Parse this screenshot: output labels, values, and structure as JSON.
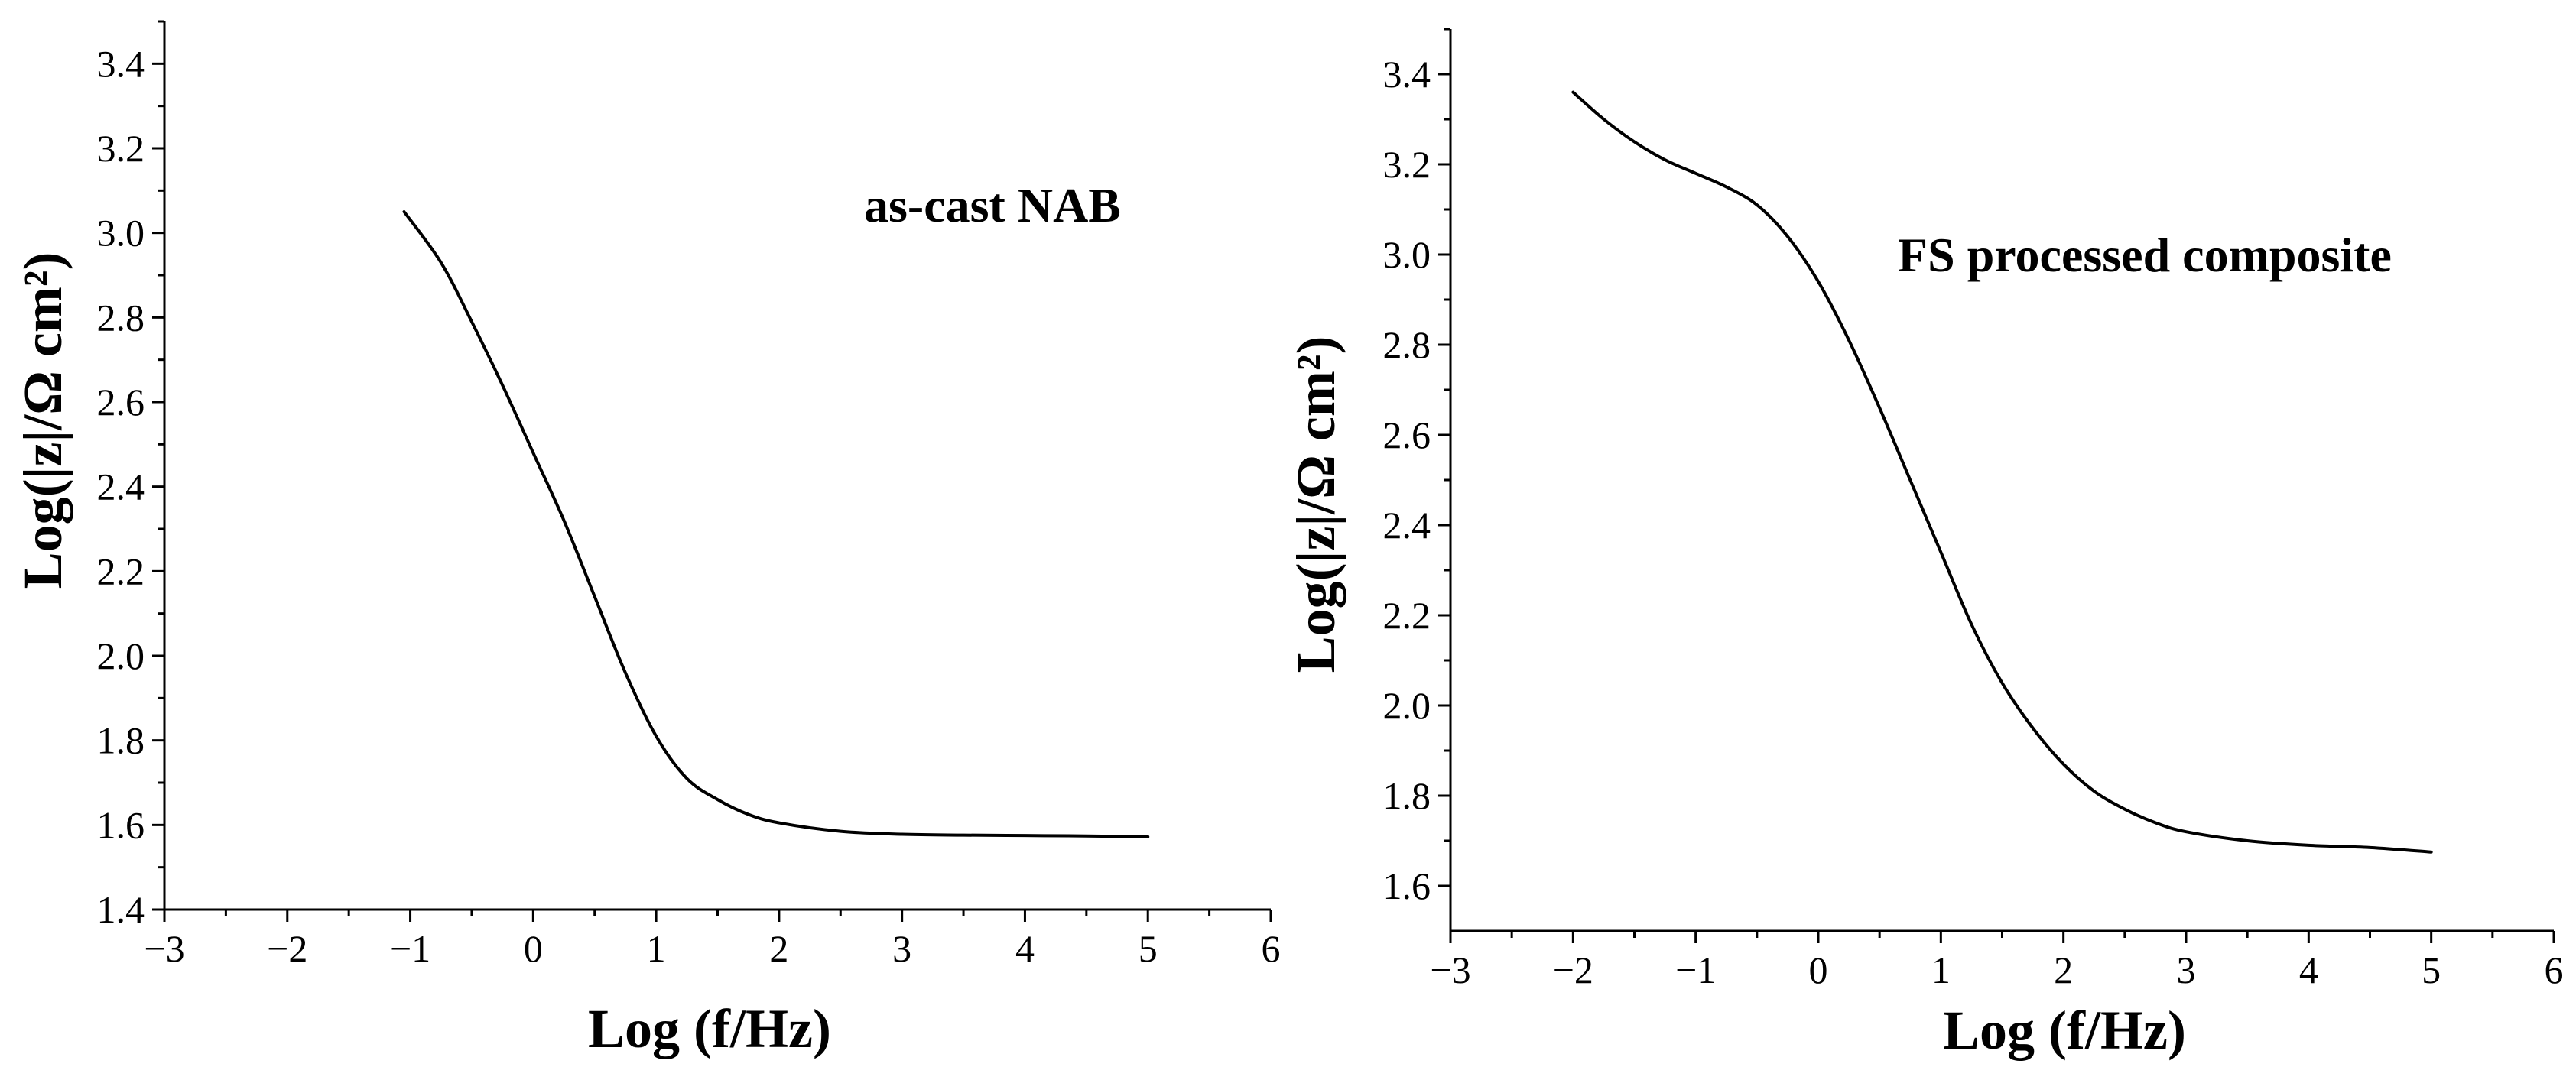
{
  "chart_data": [
    {
      "type": "line",
      "title": "",
      "annotation": "as-cast NAB",
      "xlabel": "Log (f/Hz)",
      "ylabel": "Log(|z|/Ω cm²)",
      "xlim": [
        -3,
        6
      ],
      "ylim": [
        1.4,
        3.5
      ],
      "x_ticks": [
        -3,
        -2,
        -1,
        0,
        1,
        2,
        3,
        4,
        5,
        6
      ],
      "x_tick_labels": [
        "−3",
        "−2",
        "−1",
        "0",
        "1",
        "2",
        "3",
        "4",
        "5",
        "6"
      ],
      "y_ticks": [
        1.4,
        1.6,
        1.8,
        2.0,
        2.2,
        2.4,
        2.6,
        2.8,
        3.0,
        3.2,
        3.4
      ],
      "y_tick_labels": [
        "1.4",
        "1.6",
        "1.8",
        "2.0",
        "2.2",
        "2.4",
        "2.6",
        "2.8",
        "3.0",
        "3.2",
        "3.4"
      ],
      "grid": false,
      "series": [
        {
          "x": [
            -1.05,
            -0.75,
            -0.5,
            -0.25,
            0,
            0.25,
            0.5,
            0.75,
            1.0,
            1.25,
            1.5,
            1.75,
            2.0,
            2.5,
            3.0,
            3.5,
            4.0,
            4.5,
            5.0
          ],
          "y": [
            3.05,
            2.93,
            2.79,
            2.64,
            2.48,
            2.32,
            2.14,
            1.96,
            1.81,
            1.71,
            1.66,
            1.625,
            1.605,
            1.585,
            1.578,
            1.576,
            1.575,
            1.574,
            1.572
          ]
        }
      ]
    },
    {
      "type": "line",
      "title": "",
      "annotation": "FS processed composite",
      "xlabel": "Log (f/Hz)",
      "ylabel": "Log(|z|/Ω cm²)",
      "xlim": [
        -3,
        6
      ],
      "ylim": [
        1.5,
        3.5
      ],
      "x_ticks": [
        -3,
        -2,
        -1,
        0,
        1,
        2,
        3,
        4,
        5,
        6
      ],
      "x_tick_labels": [
        "−3",
        "−2",
        "−1",
        "0",
        "1",
        "2",
        "3",
        "4",
        "5",
        "6"
      ],
      "y_ticks": [
        1.6,
        1.8,
        2.0,
        2.2,
        2.4,
        2.6,
        2.8,
        3.0,
        3.2,
        3.4
      ],
      "y_tick_labels": [
        "1.6",
        "1.8",
        "2.0",
        "2.2",
        "2.4",
        "2.6",
        "2.8",
        "3.0",
        "3.2",
        "3.4"
      ],
      "grid": false,
      "series": [
        {
          "x": [
            -2.0,
            -1.75,
            -1.5,
            -1.25,
            -1.0,
            -0.75,
            -0.5,
            -0.25,
            0,
            0.25,
            0.5,
            0.75,
            1.0,
            1.25,
            1.5,
            1.75,
            2.0,
            2.25,
            2.5,
            2.75,
            3.0,
            3.5,
            4.0,
            4.5,
            5.0
          ],
          "y": [
            3.36,
            3.3,
            3.25,
            3.21,
            3.18,
            3.15,
            3.11,
            3.04,
            2.94,
            2.81,
            2.66,
            2.5,
            2.34,
            2.18,
            2.05,
            1.95,
            1.87,
            1.81,
            1.77,
            1.74,
            1.72,
            1.7,
            1.69,
            1.685,
            1.675
          ]
        }
      ]
    }
  ]
}
